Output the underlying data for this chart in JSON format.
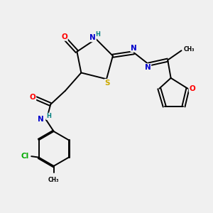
{
  "background_color": "#f0f0f0",
  "bond_color": "#000000",
  "atom_colors": {
    "C": "#000000",
    "N": "#0000cc",
    "O": "#ff0000",
    "S": "#ccaa00",
    "Cl": "#00aa00",
    "H": "#008080"
  },
  "figsize": [
    3.0,
    3.0
  ],
  "dpi": 100,
  "xlim": [
    0,
    10
  ],
  "ylim": [
    0,
    10
  ]
}
